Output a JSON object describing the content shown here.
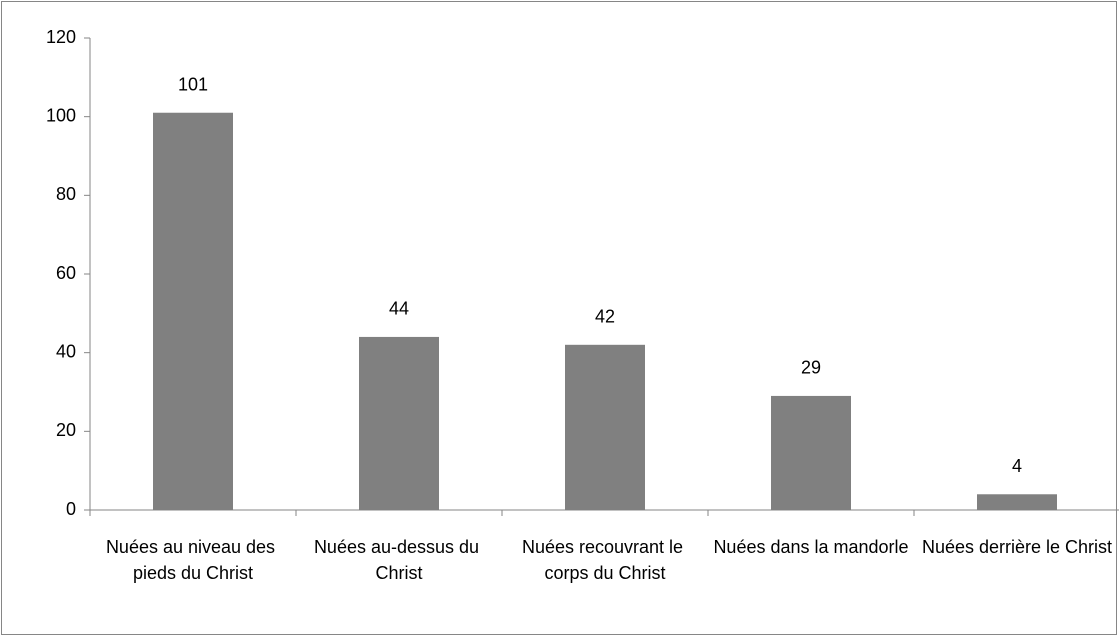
{
  "chart_data": {
    "type": "bar",
    "categories": [
      "Nuées au niveau des pieds du Christ",
      "Nuées au-dessus du Christ",
      "Nuées recouvrant le corps du Christ",
      "Nuées dans la mandorle",
      "Nuées derrière le Christ"
    ],
    "values": [
      101,
      44,
      42,
      29,
      4
    ],
    "color": "#808080",
    "ylim": [
      0,
      120
    ],
    "yticks": [
      0,
      20,
      40,
      60,
      80,
      100,
      120
    ],
    "grid": false
  }
}
